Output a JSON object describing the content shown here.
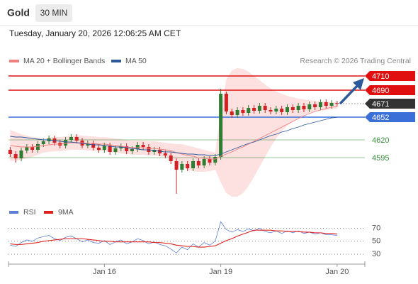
{
  "header": {
    "symbol": "Gold",
    "timeframe": "30 MIN",
    "datetime": "Tuesday, January 20, 2026 12:06:25 AM CET"
  },
  "chart_data": [
    {
      "type": "candlestick",
      "source": "Research © 2026 Trading Central",
      "xlim": [
        -0.3,
        64
      ],
      "ylim": [
        4535,
        4722
      ],
      "up_color": "#2f7d32",
      "down_color": "#d32020",
      "open": [
        4606,
        4600,
        4594,
        4605,
        4610,
        4606,
        4614,
        4618,
        4622,
        4616,
        4612,
        4620,
        4624,
        4619,
        4612,
        4615,
        4609,
        4606,
        4612,
        4603,
        4608,
        4611,
        4604,
        4607,
        4613,
        4610,
        4603,
        4606,
        4601,
        4598,
        4590,
        4578,
        4586,
        4580,
        4590,
        4584,
        4593,
        4588,
        4596,
        4685,
        4660,
        4655,
        4662,
        4658,
        4665,
        4661,
        4668,
        4662,
        4660,
        4664,
        4659,
        4666,
        4662,
        4668,
        4663,
        4670,
        4666,
        4673,
        4668,
        4672
      ],
      "high": [
        4610,
        4604,
        4609,
        4614,
        4614,
        4618,
        4622,
        4626,
        4626,
        4620,
        4624,
        4628,
        4628,
        4623,
        4619,
        4619,
        4613,
        4616,
        4616,
        4612,
        4615,
        4615,
        4611,
        4617,
        4617,
        4614,
        4610,
        4610,
        4605,
        4602,
        4594,
        4590,
        4590,
        4594,
        4594,
        4597,
        4597,
        4600,
        4692,
        4688,
        4664,
        4666,
        4666,
        4669,
        4669,
        4672,
        4672,
        4666,
        4668,
        4668,
        4670,
        4670,
        4672,
        4672,
        4674,
        4674,
        4677,
        4677,
        4676,
        4675
      ],
      "low": [
        4596,
        4588,
        4590,
        4601,
        4602,
        4602,
        4610,
        4614,
        4612,
        4608,
        4608,
        4616,
        4615,
        4608,
        4608,
        4605,
        4602,
        4602,
        4599,
        4599,
        4604,
        4600,
        4600,
        4603,
        4606,
        4599,
        4599,
        4597,
        4594,
        4586,
        4544,
        4574,
        4576,
        4576,
        4580,
        4580,
        4584,
        4584,
        4592,
        4656,
        4651,
        4651,
        4654,
        4654,
        4657,
        4657,
        4658,
        4656,
        4656,
        4655,
        4655,
        4658,
        4658,
        4659,
        4659,
        4662,
        4662,
        4664,
        4664,
        4667
      ],
      "close": [
        4600,
        4594,
        4605,
        4610,
        4606,
        4614,
        4618,
        4622,
        4616,
        4612,
        4620,
        4624,
        4619,
        4612,
        4615,
        4609,
        4606,
        4612,
        4603,
        4608,
        4611,
        4604,
        4607,
        4613,
        4610,
        4603,
        4606,
        4601,
        4598,
        4590,
        4578,
        4586,
        4580,
        4590,
        4584,
        4593,
        4588,
        4596,
        4685,
        4660,
        4655,
        4662,
        4658,
        4665,
        4661,
        4668,
        4662,
        4660,
        4664,
        4659,
        4666,
        4662,
        4668,
        4663,
        4670,
        4666,
        4673,
        4668,
        4672,
        4671
      ],
      "series": [
        {
          "name": "MA 20 + Bollinger Bands",
          "color": "#f08080",
          "band_color": "#fde0e0",
          "values": [
            4612,
            4611,
            4610,
            4610,
            4610,
            4611,
            4612,
            4613,
            4614,
            4614,
            4615,
            4616,
            4616,
            4616,
            4615,
            4615,
            4614,
            4614,
            4613,
            4612,
            4611,
            4610,
            4609,
            4609,
            4609,
            4608,
            4608,
            4607,
            4606,
            4605,
            4602,
            4600,
            4598,
            4597,
            4595,
            4594,
            4593,
            4593,
            4597,
            4600,
            4603,
            4607,
            4610,
            4614,
            4618,
            4622,
            4626,
            4630,
            4634,
            4638,
            4642,
            4646,
            4650,
            4654,
            4657,
            4660,
            4662,
            4664,
            4666,
            4667
          ],
          "upper": [
            4634,
            4631,
            4628,
            4626,
            4624,
            4623,
            4622,
            4623,
            4624,
            4624,
            4625,
            4626,
            4626,
            4626,
            4625,
            4625,
            4624,
            4624,
            4623,
            4622,
            4621,
            4620,
            4619,
            4619,
            4619,
            4618,
            4618,
            4617,
            4616,
            4615,
            4614,
            4614,
            4612,
            4610,
            4608,
            4606,
            4604,
            4602,
            4660,
            4705,
            4718,
            4721,
            4720,
            4716,
            4710,
            4704,
            4698,
            4692,
            4688,
            4685,
            4682,
            4680,
            4678,
            4677,
            4676,
            4675,
            4674,
            4674,
            4673,
            4673
          ],
          "lower": [
            4590,
            4591,
            4592,
            4594,
            4596,
            4599,
            4602,
            4603,
            4604,
            4604,
            4605,
            4606,
            4606,
            4606,
            4605,
            4605,
            4604,
            4604,
            4603,
            4602,
            4601,
            4600,
            4599,
            4599,
            4599,
            4598,
            4598,
            4597,
            4596,
            4595,
            4586,
            4582,
            4578,
            4576,
            4575,
            4575,
            4576,
            4578,
            4560,
            4545,
            4540,
            4540,
            4545,
            4555,
            4568,
            4582,
            4596,
            4610,
            4622,
            4632,
            4640,
            4646,
            4651,
            4655,
            4658,
            4660,
            4661,
            4662,
            4663,
            4664
          ]
        },
        {
          "name": "MA 50",
          "color": "#2e5a9c",
          "values": [
            4625,
            4624,
            4624,
            4623,
            4622,
            4621,
            4620,
            4620,
            4619,
            4618,
            4617,
            4617,
            4616,
            4615,
            4614,
            4613,
            4613,
            4612,
            4611,
            4610,
            4610,
            4609,
            4608,
            4607,
            4606,
            4606,
            4605,
            4604,
            4603,
            4603,
            4602,
            4601,
            4600,
            4600,
            4599,
            4599,
            4598,
            4598,
            4600,
            4603,
            4606,
            4609,
            4612,
            4615,
            4617,
            4620,
            4623,
            4626,
            4628,
            4631,
            4633,
            4636,
            4638,
            4641,
            4643,
            4645,
            4647,
            4649,
            4651,
            4652
          ]
        }
      ],
      "levels": [
        {
          "value": 4710,
          "color": "#e01010",
          "label_style": "box"
        },
        {
          "value": 4690,
          "color": "#e01010",
          "label_style": "box"
        },
        {
          "value": 4652,
          "color": "#3a6fd8",
          "label_style": "box"
        },
        {
          "value": 4620,
          "color": "#3a8f3a",
          "label_style": "text"
        },
        {
          "value": 4595,
          "color": "#3a8f3a",
          "label_style": "text"
        }
      ],
      "last_price": 4671,
      "last_price_color": "#333333"
    },
    {
      "type": "line",
      "xlim": [
        -0.3,
        64
      ],
      "ylim": [
        17,
        88
      ],
      "yticks": [
        30,
        50,
        70
      ],
      "grid": true,
      "xticks": [
        {
          "value": 17,
          "label": "Jan 16"
        },
        {
          "value": 38,
          "label": "Jan 19"
        },
        {
          "value": 59,
          "label": "Jan 20"
        }
      ],
      "series": [
        {
          "name": "RSI",
          "color": "#5b7fd6",
          "values": [
            44,
            42,
            48,
            52,
            50,
            55,
            57,
            59,
            54,
            51,
            56,
            58,
            54,
            49,
            52,
            48,
            47,
            51,
            45,
            49,
            52,
            46,
            49,
            54,
            51,
            46,
            49,
            45,
            43,
            38,
            32,
            41,
            37,
            46,
            41,
            48,
            44,
            50,
            80,
            68,
            64,
            68,
            65,
            69,
            66,
            70,
            65,
            63,
            66,
            62,
            66,
            63,
            66,
            62,
            64,
            61,
            63,
            60,
            60,
            59
          ]
        },
        {
          "name": "9MA",
          "color": "#e02020",
          "values": [
            46,
            45,
            45,
            46,
            47,
            48,
            50,
            51,
            52,
            53,
            54,
            54,
            54,
            54,
            53,
            52,
            51,
            50,
            50,
            49,
            49,
            49,
            49,
            49,
            49,
            49,
            48,
            48,
            47,
            46,
            44,
            43,
            42,
            42,
            41,
            41,
            42,
            43,
            47,
            51,
            54,
            58,
            61,
            64,
            67,
            67,
            67,
            67,
            66,
            66,
            65,
            65,
            65,
            64,
            64,
            63,
            63,
            62,
            62,
            61
          ]
        }
      ]
    }
  ]
}
